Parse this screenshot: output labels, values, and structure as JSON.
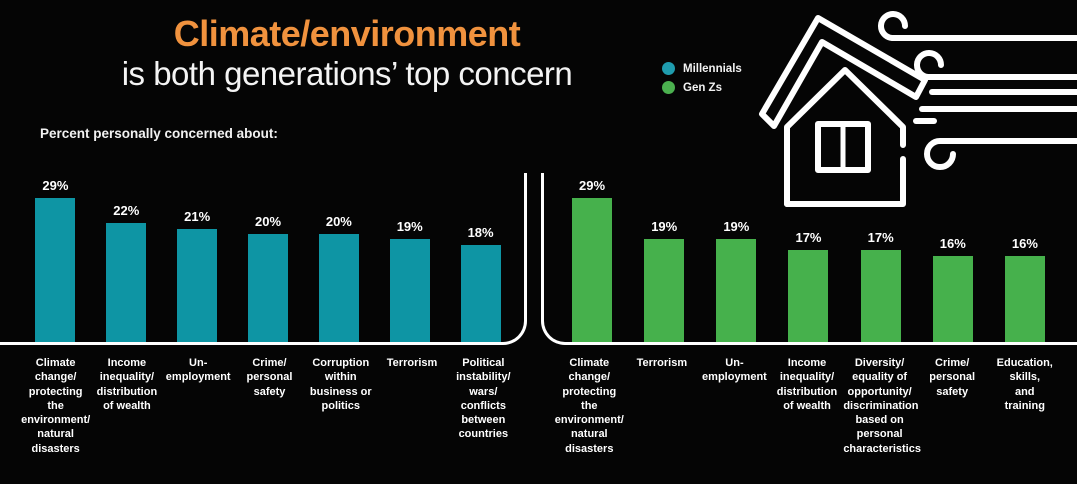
{
  "title": {
    "line1": "Climate/environment",
    "line2": "is both generations’ top concern"
  },
  "subtitle": "Percent personally concerned about:",
  "legend": {
    "items": [
      {
        "label": "Millennials",
        "color": "#1f9cae"
      },
      {
        "label": "Gen Zs",
        "color": "#4bb04f"
      }
    ]
  },
  "colors": {
    "background": "#050505",
    "title_accent": "#f0923e",
    "text": "#ffffff",
    "panel_line": "#ffffff",
    "millennials_bar": "#0e95a4",
    "genz_bar": "#46b14c"
  },
  "illustration": {
    "name": "house-in-windstorm",
    "color": "#ffffff"
  },
  "chart_data": [
    {
      "type": "bar",
      "series_name": "Millennials",
      "color": "#0e95a4",
      "unit": "%",
      "ylim": [
        0,
        30
      ],
      "grid": false,
      "legend_position": "top-right",
      "categories": [
        "Climate\nchange/\nprotecting\nthe\nenvironment/\nnatural\ndisasters",
        "Income\ninequality/\ndistribution\nof wealth",
        "Un-\nemployment",
        "Crime/\npersonal\nsafety",
        "Corruption\nwithin\nbusiness or\npolitics",
        "Terrorism",
        "Political\ninstability/\nwars/\nconflicts\nbetween\ncountries"
      ],
      "values": [
        29,
        22,
        21,
        20,
        20,
        19,
        18
      ],
      "value_labels": [
        "29%",
        "22%",
        "21%",
        "20%",
        "20%",
        "19%",
        "18%"
      ]
    },
    {
      "type": "bar",
      "series_name": "Gen Zs",
      "color": "#46b14c",
      "unit": "%",
      "ylim": [
        0,
        30
      ],
      "grid": false,
      "legend_position": "top-right",
      "categories": [
        "Climate\nchange/\nprotecting the\nenvironment/\nnatural\ndisasters",
        "Terrorism",
        "Un-\nemployment",
        "Income\ninequality/\ndistribution\nof wealth",
        "Diversity/\nequality of\nopportunity/\ndiscrimination\nbased on\npersonal\ncharacteristics",
        "Crime/\npersonal\nsafety",
        "Education,\nskills,\nand\ntraining"
      ],
      "values": [
        29,
        19,
        19,
        17,
        17,
        16,
        16
      ],
      "value_labels": [
        "29%",
        "19%",
        "19%",
        "17%",
        "17%",
        "16%",
        "16%"
      ]
    }
  ]
}
